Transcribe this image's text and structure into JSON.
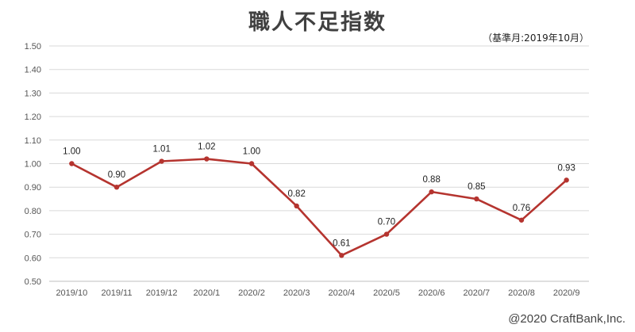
{
  "header": {
    "title": "職人不足指数",
    "subtitle": "（基準月:2019年10月）"
  },
  "footer": {
    "copyright": "@2020 CraftBank,Inc."
  },
  "chart_data": {
    "type": "line",
    "categories": [
      "2019/10",
      "2019/11",
      "2019/12",
      "2020/1",
      "2020/2",
      "2020/3",
      "2020/4",
      "2020/5",
      "2020/6",
      "2020/7",
      "2020/8",
      "2020/9"
    ],
    "values": [
      1.0,
      0.9,
      1.01,
      1.02,
      1.0,
      0.82,
      0.61,
      0.7,
      0.88,
      0.85,
      0.76,
      0.93
    ],
    "data_labels": [
      "1.00",
      "0.90",
      "1.01",
      "1.02",
      "1.00",
      "0.82",
      "0.61",
      "0.70",
      "0.88",
      "0.85",
      "0.76",
      "0.93"
    ],
    "yticks": [
      "0.50",
      "0.60",
      "0.70",
      "0.80",
      "0.90",
      "1.00",
      "1.10",
      "1.20",
      "1.30",
      "1.40",
      "1.50"
    ],
    "ylim": [
      0.5,
      1.5
    ],
    "grid": true,
    "legend": "none",
    "colors": {
      "line": "#b5342f",
      "grid": "#d9d9d9",
      "axis": "#bfbfbf"
    }
  }
}
